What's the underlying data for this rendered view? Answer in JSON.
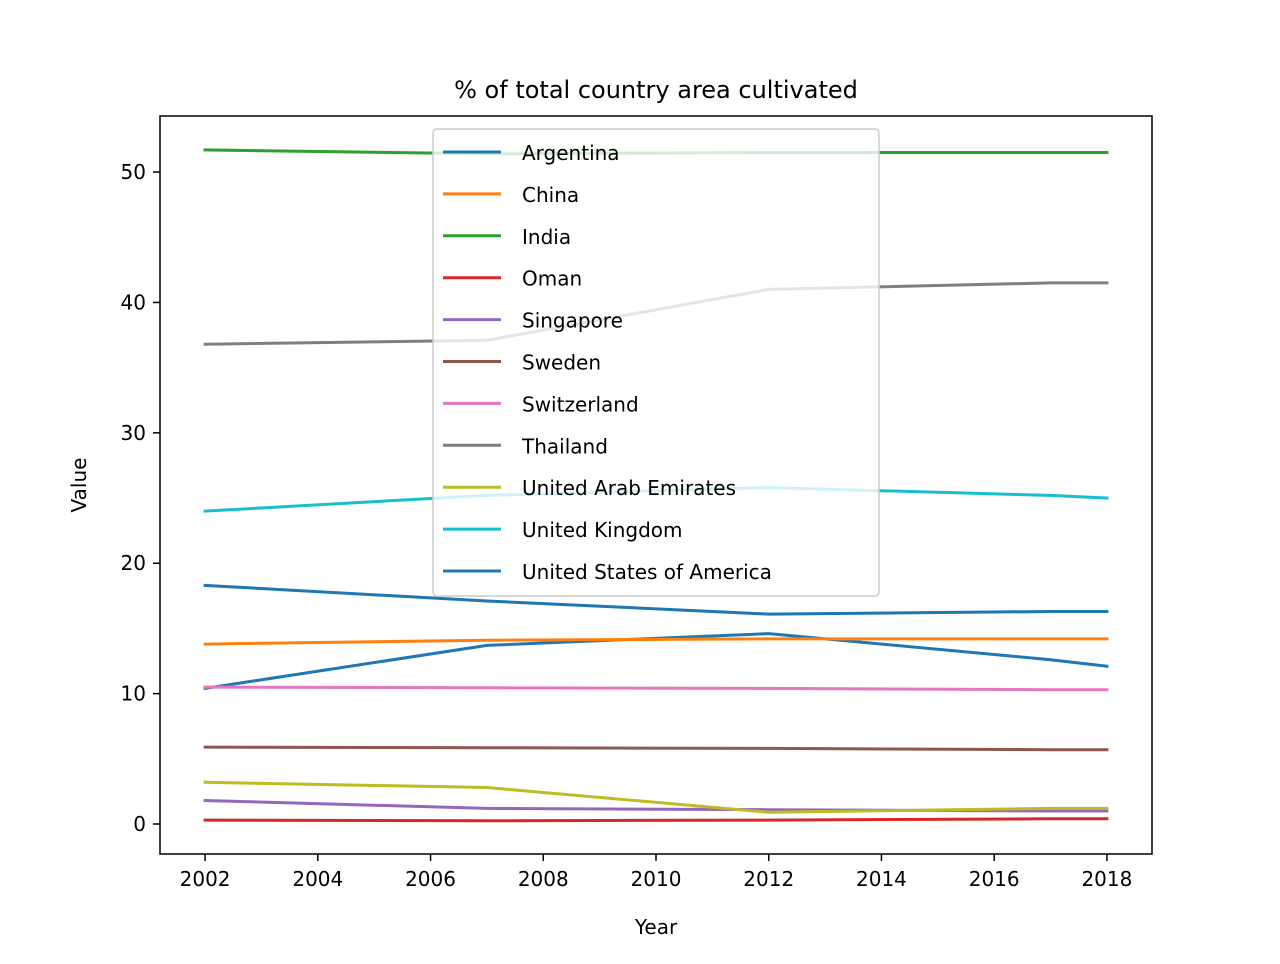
{
  "chart_data": {
    "type": "line",
    "title": "% of total country area cultivated",
    "xlabel": "Year",
    "ylabel": "Value",
    "xlim": [
      2001.2,
      2018.8
    ],
    "ylim": [
      -2.3,
      54.3
    ],
    "xticks": [
      2002,
      2004,
      2006,
      2008,
      2010,
      2012,
      2014,
      2016,
      2018
    ],
    "yticks": [
      0,
      10,
      20,
      30,
      40,
      50
    ],
    "x": [
      2002,
      2007,
      2012,
      2017,
      2018
    ],
    "legend_position": "upper center",
    "grid": false,
    "series": [
      {
        "name": "Argentina",
        "color": "#1f77b4",
        "values": [
          10.4,
          13.7,
          14.6,
          12.6,
          12.1
        ]
      },
      {
        "name": "China",
        "color": "#ff7f0e",
        "values": [
          13.8,
          14.1,
          14.2,
          14.2,
          14.2
        ]
      },
      {
        "name": "India",
        "color": "#2ca02c",
        "values": [
          51.7,
          51.4,
          51.5,
          51.5,
          51.5
        ]
      },
      {
        "name": "Oman",
        "color": "#d62728",
        "values": [
          0.3,
          0.25,
          0.3,
          0.4,
          0.4
        ]
      },
      {
        "name": "Singapore",
        "color": "#9467bd",
        "values": [
          1.8,
          1.2,
          1.1,
          1.0,
          1.0
        ]
      },
      {
        "name": "Sweden",
        "color": "#8c564b",
        "values": [
          5.9,
          5.85,
          5.8,
          5.7,
          5.7
        ]
      },
      {
        "name": "Switzerland",
        "color": "#e377c2",
        "values": [
          10.5,
          10.45,
          10.4,
          10.3,
          10.3
        ]
      },
      {
        "name": "Thailand",
        "color": "#7f7f7f",
        "values": [
          36.8,
          37.1,
          41.0,
          41.5,
          41.5
        ]
      },
      {
        "name": "United Arab Emirates",
        "color": "#bcbd22",
        "values": [
          3.2,
          2.8,
          0.9,
          1.2,
          1.2
        ]
      },
      {
        "name": "United Kingdom",
        "color": "#17becf",
        "values": [
          24.0,
          25.2,
          25.8,
          25.2,
          25.0
        ]
      },
      {
        "name": "United States of America",
        "color": "#1f77b4",
        "values": [
          18.3,
          17.1,
          16.1,
          16.3,
          16.3
        ]
      }
    ]
  }
}
